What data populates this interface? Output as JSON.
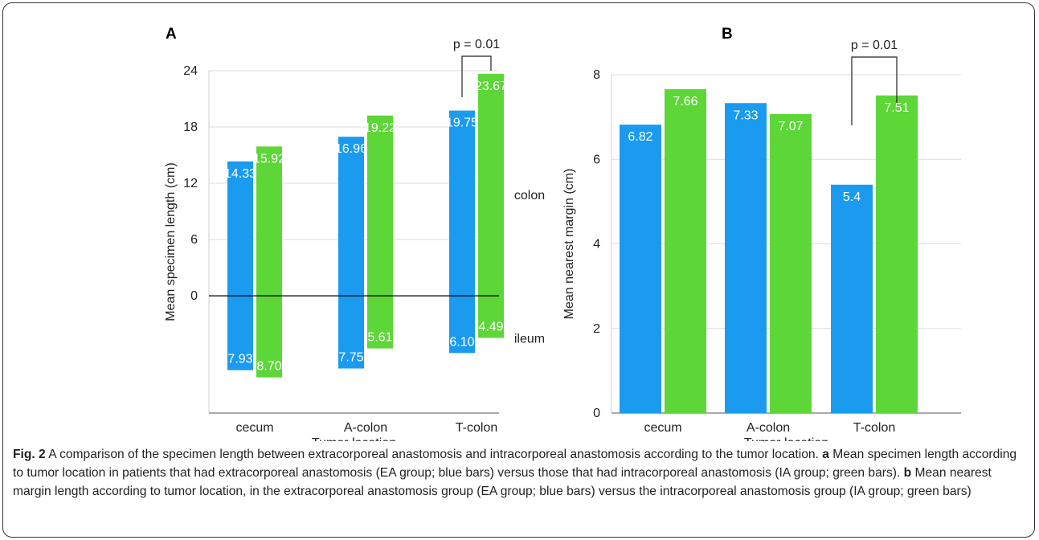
{
  "chart_data": [
    {
      "panel_label": "A",
      "type": "bar",
      "ylabel": "Mean specimen length (cm)",
      "xlabel": "Tumor location",
      "categories": [
        "cecum",
        "A-colon",
        "T-colon"
      ],
      "yticks": [
        0,
        6,
        12,
        18,
        24
      ],
      "ylim": [
        -12.5,
        24
      ],
      "zero_line": true,
      "side_labels": {
        "above": "colon",
        "below": "ileum"
      },
      "series": [
        {
          "color": "#1a9bf0",
          "values": [
            14.33,
            16.96,
            19.75
          ],
          "labels": [
            "14.33",
            "16.96",
            "19.75"
          ],
          "below_values": [
            7.93,
            7.75,
            6.1
          ],
          "below_labels": [
            "7.93",
            "7.75",
            "6.10"
          ]
        },
        {
          "color": "#5dd638",
          "values": [
            15.92,
            19.22,
            23.67
          ],
          "labels": [
            "15.92",
            "19.22",
            "23.67"
          ],
          "below_values": [
            8.7,
            5.61,
            4.49
          ],
          "below_labels": [
            "8.70",
            "5.61",
            "4.49"
          ]
        }
      ],
      "annotation": {
        "text": "p = 0.01",
        "category": "T-colon"
      }
    },
    {
      "panel_label": "B",
      "type": "bar",
      "ylabel": "Mean nearest margin (cm)",
      "xlabel": "Tumor location",
      "categories": [
        "cecum",
        "A-colon",
        "T-colon"
      ],
      "yticks": [
        0,
        2,
        4,
        6,
        8
      ],
      "ylim": [
        0,
        8
      ],
      "series": [
        {
          "color": "#1a9bf0",
          "values": [
            6.82,
            7.33,
            5.4
          ],
          "labels": [
            "6.82",
            "7.33",
            "5.4"
          ]
        },
        {
          "color": "#5dd638",
          "values": [
            7.66,
            7.07,
            7.51
          ],
          "labels": [
            "7.66",
            "7.07",
            "7.51"
          ]
        }
      ],
      "annotation": {
        "text": "p = 0.01",
        "category": "T-colon"
      }
    }
  ],
  "caption": {
    "fig_label": "Fig. 2",
    "text_1": " A comparison of the specimen length between extracorporeal anastomosis and intracorporeal anastomosis according to the tumor location. ",
    "a_label": "a",
    "text_2": " Mean specimen length according to tumor location in patients that had extracorporeal anastomosis (EA group; blue bars) versus those that had intracorporeal anastomosis (IA group; green bars). ",
    "b_label": "b",
    "text_3": " Mean nearest margin length according to tumor location, in the extracorporeal anastomosis group (EA group; blue bars) versus the intracorporeal anastomosis group (IA group; green bars)"
  }
}
